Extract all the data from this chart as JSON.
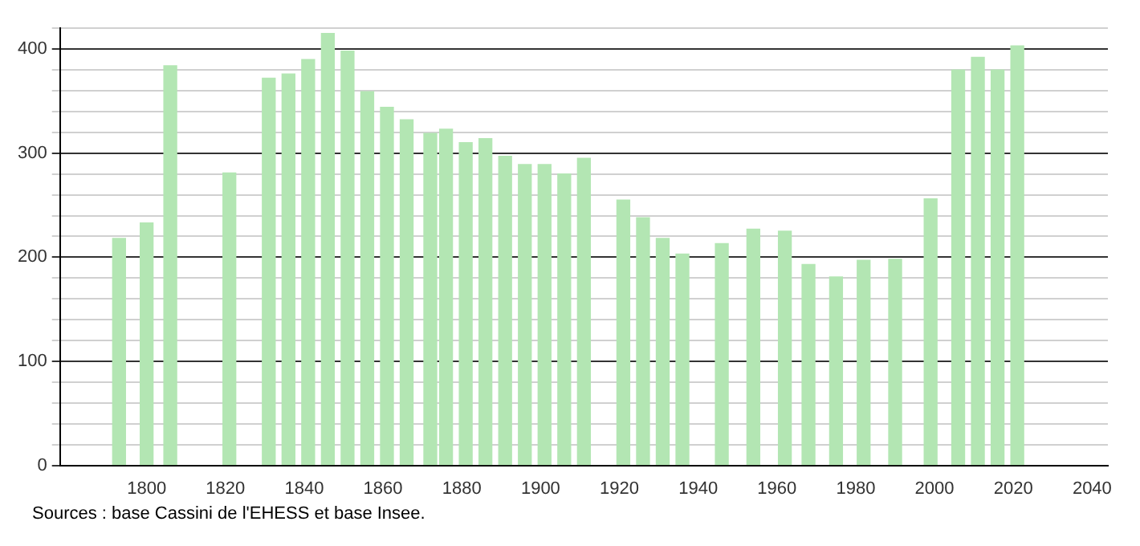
{
  "chart_data": {
    "type": "bar",
    "x": [
      1793,
      1800,
      1806,
      1821,
      1831,
      1836,
      1841,
      1846,
      1851,
      1856,
      1861,
      1866,
      1872,
      1876,
      1881,
      1886,
      1891,
      1896,
      1901,
      1906,
      1911,
      1921,
      1926,
      1931,
      1936,
      1946,
      1954,
      1962,
      1968,
      1975,
      1982,
      1990,
      1999,
      2006,
      2011,
      2016,
      2021
    ],
    "values": [
      218,
      233,
      384,
      281,
      372,
      376,
      390,
      415,
      398,
      359,
      344,
      332,
      319,
      323,
      310,
      314,
      297,
      289,
      289,
      280,
      295,
      255,
      238,
      218,
      203,
      213,
      227,
      225,
      193,
      181,
      197,
      198,
      256,
      380,
      392,
      380,
      403
    ],
    "color": "#b3e6b3",
    "xlim": [
      1778,
      2044
    ],
    "xticks": [
      1800,
      1820,
      1840,
      1860,
      1880,
      1900,
      1920,
      1940,
      1960,
      1980,
      2000,
      2020,
      2040
    ],
    "ylim": [
      0,
      420
    ],
    "yticks": [
      0,
      {
        "value": 20,
        "label": null
      },
      {
        "value": 40,
        "label": null
      },
      {
        "value": 60,
        "label": null
      },
      {
        "value": 80,
        "label": null
      },
      100,
      {
        "value": 120,
        "label": null
      },
      {
        "value": 140,
        "label": null
      },
      {
        "value": 160,
        "label": null
      },
      {
        "value": 180,
        "label": null
      },
      200,
      {
        "value": 220,
        "label": null
      },
      {
        "value": 240,
        "label": null
      },
      {
        "value": 260,
        "label": null
      },
      {
        "value": 280,
        "label": null
      },
      300,
      {
        "value": 320,
        "label": null
      },
      {
        "value": 340,
        "label": null
      },
      {
        "value": 360,
        "label": null
      },
      {
        "value": 380,
        "label": null
      },
      400,
      {
        "value": 420,
        "label": null
      }
    ],
    "grid": "y",
    "annotations": [
      "Sources : base Cassini de l'EHESS et base Insee."
    ]
  }
}
